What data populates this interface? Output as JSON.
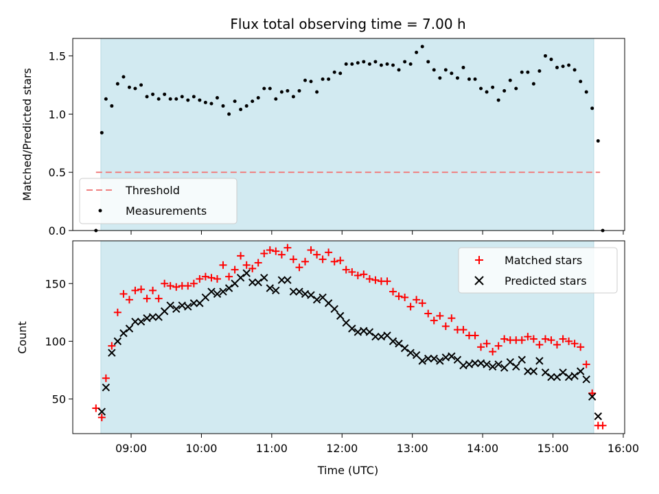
{
  "figure": {
    "title": "Flux total observing time = 7.00 h",
    "xlabel": "Time (UTC)",
    "xticks": [
      "09:00",
      "10:00",
      "11:00",
      "12:00",
      "13:00",
      "14:00",
      "15:00",
      "16:00"
    ],
    "colors": {
      "observing_window": "#d2eaf1",
      "threshold": "#f07f7f",
      "measurements": "#000000",
      "matched": "#ff0000",
      "predicted": "#000000"
    }
  },
  "chart_data": [
    {
      "type": "scatter",
      "ylabel": "Matched/Predicted stars",
      "ylim": [
        0,
        1.65
      ],
      "xlim_hours": [
        8.17,
        16.02
      ],
      "yticks": [
        0.0,
        0.5,
        1.0,
        1.5
      ],
      "ytick_labels": [
        "0.0",
        "0.5",
        "1.0",
        "1.5"
      ],
      "observing_window_hours": [
        8.57,
        15.58
      ],
      "legend_position": "lower-left",
      "threshold": {
        "name": "Threshold",
        "value": 0.5,
        "x_hours": [
          8.5,
          15.67
        ]
      },
      "series": [
        {
          "name": "Measurements",
          "marker": "dot",
          "x_hours": [
            8.5,
            8.583,
            8.642,
            8.725,
            8.808,
            8.892,
            8.975,
            9.058,
            9.142,
            9.225,
            9.308,
            9.392,
            9.475,
            9.558,
            9.642,
            9.725,
            9.808,
            9.892,
            9.975,
            10.058,
            10.142,
            10.225,
            10.308,
            10.392,
            10.475,
            10.558,
            10.642,
            10.725,
            10.808,
            10.892,
            10.975,
            11.058,
            11.142,
            11.225,
            11.308,
            11.392,
            11.475,
            11.558,
            11.642,
            11.725,
            11.808,
            11.892,
            11.975,
            12.058,
            12.142,
            12.225,
            12.308,
            12.392,
            12.475,
            12.558,
            12.642,
            12.725,
            12.808,
            12.892,
            12.975,
            13.058,
            13.142,
            13.225,
            13.308,
            13.392,
            13.475,
            13.558,
            13.642,
            13.725,
            13.808,
            13.892,
            13.975,
            14.058,
            14.142,
            14.225,
            14.308,
            14.392,
            14.475,
            14.558,
            14.642,
            14.725,
            14.808,
            14.892,
            14.975,
            15.058,
            15.142,
            15.225,
            15.308,
            15.392,
            15.475,
            15.558,
            15.642,
            15.708
          ],
          "y": [
            0.0,
            0.84,
            1.13,
            1.07,
            1.26,
            1.32,
            1.23,
            1.22,
            1.25,
            1.15,
            1.17,
            1.13,
            1.17,
            1.13,
            1.13,
            1.15,
            1.12,
            1.15,
            1.12,
            1.1,
            1.09,
            1.14,
            1.07,
            1.0,
            1.11,
            1.04,
            1.07,
            1.11,
            1.14,
            1.22,
            1.22,
            1.13,
            1.19,
            1.2,
            1.15,
            1.2,
            1.29,
            1.28,
            1.19,
            1.3,
            1.3,
            1.36,
            1.35,
            1.43,
            1.43,
            1.44,
            1.45,
            1.43,
            1.45,
            1.42,
            1.43,
            1.42,
            1.38,
            1.45,
            1.43,
            1.53,
            1.58,
            1.45,
            1.38,
            1.31,
            1.38,
            1.35,
            1.31,
            1.4,
            1.3,
            1.3,
            1.22,
            1.19,
            1.23,
            1.12,
            1.2,
            1.29,
            1.22,
            1.36,
            1.36,
            1.26,
            1.37,
            1.5,
            1.47,
            1.4,
            1.41,
            1.42,
            1.38,
            1.28,
            1.19,
            1.05,
            0.77,
            0.0
          ]
        }
      ]
    },
    {
      "type": "scatter",
      "ylabel": "Count",
      "ylim": [
        20,
        187
      ],
      "xlim_hours": [
        8.17,
        16.02
      ],
      "yticks": [
        50,
        100,
        150
      ],
      "ytick_labels": [
        "50",
        "100",
        "150"
      ],
      "observing_window_hours": [
        8.57,
        15.58
      ],
      "legend_position": "top-right",
      "series": [
        {
          "name": "Matched stars",
          "marker": "plus",
          "x_hours": [
            8.5,
            8.583,
            8.642,
            8.725,
            8.808,
            8.892,
            8.975,
            9.058,
            9.142,
            9.225,
            9.308,
            9.392,
            9.475,
            9.558,
            9.642,
            9.725,
            9.808,
            9.892,
            9.975,
            10.058,
            10.142,
            10.225,
            10.308,
            10.392,
            10.475,
            10.558,
            10.642,
            10.725,
            10.808,
            10.892,
            10.975,
            11.058,
            11.142,
            11.225,
            11.308,
            11.392,
            11.475,
            11.558,
            11.642,
            11.725,
            11.808,
            11.892,
            11.975,
            12.058,
            12.142,
            12.225,
            12.308,
            12.392,
            12.475,
            12.558,
            12.642,
            12.725,
            12.808,
            12.892,
            12.975,
            13.058,
            13.142,
            13.225,
            13.308,
            13.392,
            13.475,
            13.558,
            13.642,
            13.725,
            13.808,
            13.892,
            13.975,
            14.058,
            14.142,
            14.225,
            14.308,
            14.392,
            14.475,
            14.558,
            14.642,
            14.725,
            14.808,
            14.892,
            14.975,
            15.058,
            15.142,
            15.225,
            15.308,
            15.392,
            15.475,
            15.558,
            15.642,
            15.708
          ],
          "y": [
            42,
            34,
            68,
            96,
            125,
            141,
            136,
            144,
            145,
            137,
            144,
            137,
            150,
            148,
            147,
            148,
            148,
            150,
            154,
            156,
            155,
            154,
            166,
            156,
            162,
            174,
            166,
            163,
            168,
            176,
            179,
            178,
            175,
            181,
            171,
            164,
            169,
            179,
            175,
            171,
            177,
            169,
            170,
            162,
            160,
            157,
            158,
            154,
            153,
            152,
            152,
            143,
            139,
            138,
            130,
            136,
            133,
            124,
            118,
            122,
            113,
            120,
            110,
            110,
            105,
            105,
            95,
            98,
            91,
            96,
            102,
            101,
            101,
            101,
            104,
            102,
            97,
            102,
            101,
            97,
            102,
            100,
            98,
            95,
            80,
            55,
            27,
            27
          ]
        },
        {
          "name": "Predicted stars",
          "marker": "x",
          "x_hours": [
            8.5,
            8.583,
            8.642,
            8.725,
            8.808,
            8.892,
            8.975,
            9.058,
            9.142,
            9.225,
            9.308,
            9.392,
            9.475,
            9.558,
            9.642,
            9.725,
            9.808,
            9.892,
            9.975,
            10.058,
            10.142,
            10.225,
            10.308,
            10.392,
            10.475,
            10.558,
            10.642,
            10.725,
            10.808,
            10.892,
            10.975,
            11.058,
            11.142,
            11.225,
            11.308,
            11.392,
            11.475,
            11.558,
            11.642,
            11.725,
            11.808,
            11.892,
            11.975,
            12.058,
            12.142,
            12.225,
            12.308,
            12.392,
            12.475,
            12.558,
            12.642,
            12.725,
            12.808,
            12.892,
            12.975,
            13.058,
            13.142,
            13.225,
            13.308,
            13.392,
            13.475,
            13.558,
            13.642,
            13.725,
            13.808,
            13.892,
            13.975,
            14.058,
            14.142,
            14.225,
            14.308,
            14.392,
            14.475,
            14.558,
            14.642,
            14.725,
            14.808,
            14.892,
            14.975,
            15.058,
            15.142,
            15.225,
            15.308,
            15.392,
            15.475,
            15.558,
            15.642,
            15.708
          ],
          "y": [
            null,
            39,
            60,
            90,
            100,
            107,
            111,
            117,
            117,
            120,
            121,
            121,
            126,
            131,
            128,
            131,
            130,
            133,
            133,
            138,
            143,
            141,
            143,
            146,
            150,
            155,
            159,
            151,
            151,
            155,
            146,
            144,
            153,
            153,
            143,
            143,
            141,
            140,
            136,
            138,
            133,
            128,
            122,
            116,
            111,
            108,
            109,
            108,
            104,
            104,
            105,
            100,
            98,
            94,
            90,
            88,
            83,
            85,
            85,
            83,
            86,
            87,
            84,
            79,
            80,
            81,
            81,
            80,
            78,
            80,
            77,
            82,
            78,
            84,
            74,
            74,
            83,
            73,
            69,
            69,
            73,
            69,
            70,
            74,
            67,
            52,
            35,
            null
          ]
        }
      ]
    }
  ]
}
